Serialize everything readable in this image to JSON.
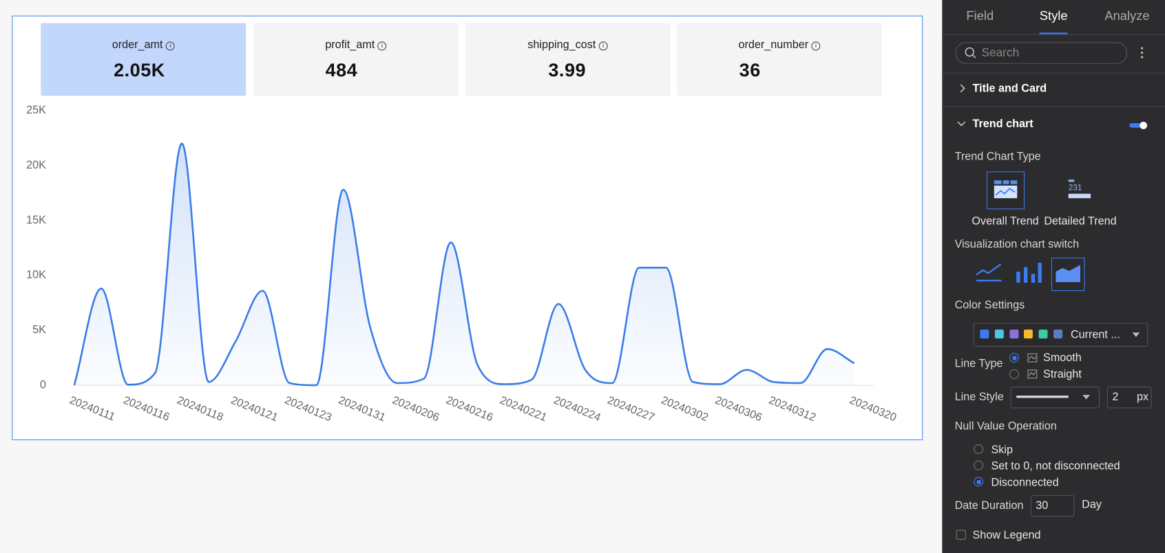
{
  "kpis": [
    {
      "name": "order_amt",
      "value": "2.05K"
    },
    {
      "name": "profit_amt",
      "value": "484"
    },
    {
      "name": "shipping_cost",
      "value": "3.99"
    },
    {
      "name": "order_number",
      "value": "36"
    }
  ],
  "chart_data": {
    "type": "area",
    "smooth": true,
    "color": "#3a7be8",
    "categories": [
      "20240111",
      null,
      "20240116",
      null,
      "20240118",
      null,
      "20240121",
      null,
      "20240123",
      null,
      "20240131",
      null,
      "20240206",
      null,
      "20240216",
      null,
      "20240221",
      null,
      "20240224",
      null,
      "20240227",
      null,
      "20240302",
      null,
      "20240306",
      null,
      "20240312",
      null,
      null,
      "20240320"
    ],
    "values": [
      0,
      8800,
      50,
      1100,
      22000,
      300,
      4000,
      8600,
      200,
      0,
      17800,
      5300,
      200,
      600,
      13000,
      1800,
      100,
      500,
      7400,
      1400,
      200,
      10700,
      10700,
      300,
      100,
      1400,
      300,
      200,
      3300,
      2000
    ],
    "ylim": [
      0,
      25000
    ],
    "yticks": [
      0,
      {
        "value": 5000,
        "label": "5K"
      },
      {
        "value": 10000,
        "label": "10K"
      },
      {
        "value": 15000,
        "label": "15K"
      },
      {
        "value": 20000,
        "label": "20K"
      },
      {
        "value": 25000,
        "label": "25K"
      }
    ],
    "grid": false
  },
  "panel": {
    "tabs": [
      "Field",
      "Style",
      "Analyze"
    ],
    "search": "Search",
    "title_card": "Title and Card",
    "trend": "Trend chart",
    "trend_type_label": "Trend Chart Type",
    "trend_types": [
      "Overall Trend",
      "Detailed Trend"
    ],
    "detailed_icon_text": "231",
    "viz_label": "Visualization chart switch",
    "color_label": "Color Settings",
    "colors": [
      "#3a7bf0",
      "#4fc3e8",
      "#8d6fe0",
      "#f5b82e",
      "#3cc9a5",
      "#5b7bc6"
    ],
    "color_scheme": "Current ...",
    "line_type_label": "Line Type",
    "line_types": [
      "Smooth",
      "Straight"
    ],
    "line_style_label": "Line Style",
    "line_width": "2",
    "line_width_unit": "px",
    "null_label": "Null Value Operation",
    "null_options": [
      "Skip",
      "Set to 0, not disconnected",
      "Disconnected"
    ],
    "date_label": "Date Duration",
    "date_value": "30",
    "date_unit": "Day",
    "legend": "Show Legend"
  }
}
